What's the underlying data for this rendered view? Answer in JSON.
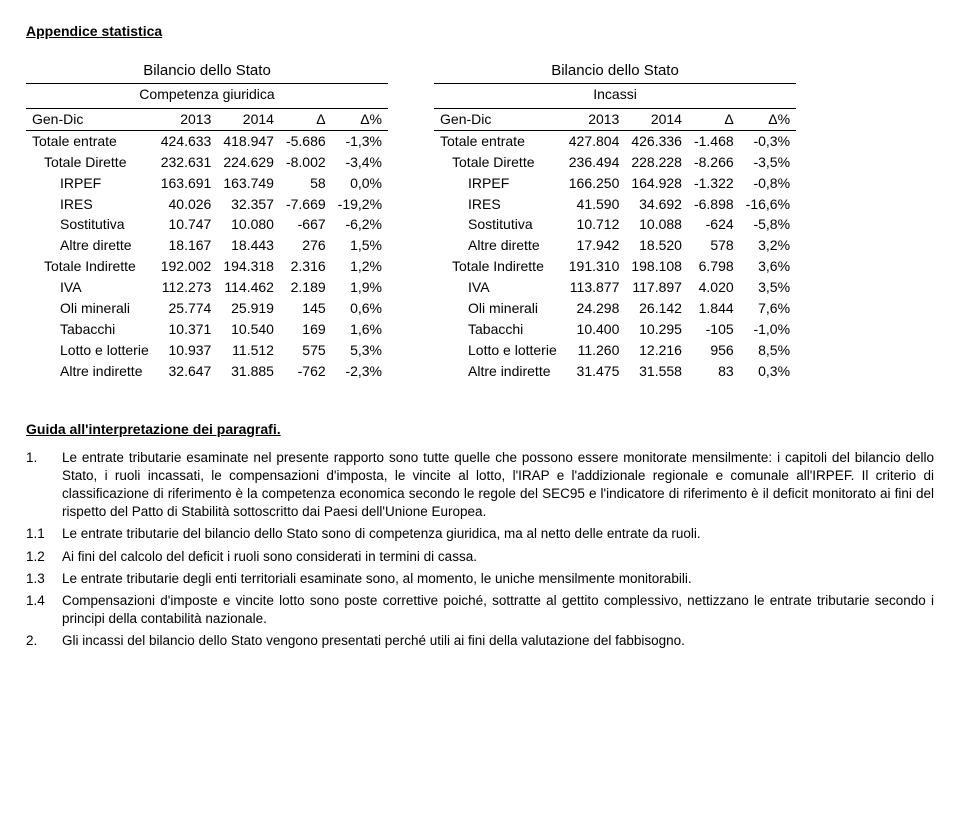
{
  "page_title": "Appendice statistica",
  "table_left": {
    "title": "Bilancio dello Stato",
    "subtitle": "Competenza giuridica",
    "period_label": "Gen-Dic",
    "col_years": [
      "2013",
      "2014"
    ],
    "col_delta": "Δ",
    "col_delta_pct": "Δ%",
    "rows": [
      {
        "label": "Totale entrate",
        "indent": 0,
        "v1": "424.633",
        "v2": "418.947",
        "d": "-5.686",
        "p": "-1,3%"
      },
      {
        "label": "Totale Dirette",
        "indent": 1,
        "v1": "232.631",
        "v2": "224.629",
        "d": "-8.002",
        "p": "-3,4%"
      },
      {
        "label": "IRPEF",
        "indent": 2,
        "v1": "163.691",
        "v2": "163.749",
        "d": "58",
        "p": "0,0%"
      },
      {
        "label": "IRES",
        "indent": 2,
        "v1": "40.026",
        "v2": "32.357",
        "d": "-7.669",
        "p": "-19,2%"
      },
      {
        "label": "Sostitutiva",
        "indent": 2,
        "v1": "10.747",
        "v2": "10.080",
        "d": "-667",
        "p": "-6,2%"
      },
      {
        "label": "Altre dirette",
        "indent": 2,
        "v1": "18.167",
        "v2": "18.443",
        "d": "276",
        "p": "1,5%"
      },
      {
        "label": "Totale Indirette",
        "indent": 1,
        "v1": "192.002",
        "v2": "194.318",
        "d": "2.316",
        "p": "1,2%"
      },
      {
        "label": "IVA",
        "indent": 2,
        "v1": "112.273",
        "v2": "114.462",
        "d": "2.189",
        "p": "1,9%"
      },
      {
        "label": "Oli minerali",
        "indent": 2,
        "v1": "25.774",
        "v2": "25.919",
        "d": "145",
        "p": "0,6%"
      },
      {
        "label": "Tabacchi",
        "indent": 2,
        "v1": "10.371",
        "v2": "10.540",
        "d": "169",
        "p": "1,6%"
      },
      {
        "label": "Lotto e lotterie",
        "indent": 2,
        "v1": "10.937",
        "v2": "11.512",
        "d": "575",
        "p": "5,3%"
      },
      {
        "label": "Altre indirette",
        "indent": 2,
        "v1": "32.647",
        "v2": "31.885",
        "d": "-762",
        "p": "-2,3%"
      }
    ]
  },
  "table_right": {
    "title": "Bilancio dello Stato",
    "subtitle": "Incassi",
    "period_label": "Gen-Dic",
    "col_years": [
      "2013",
      "2014"
    ],
    "col_delta": "Δ",
    "col_delta_pct": "Δ%",
    "rows": [
      {
        "label": "Totale entrate",
        "indent": 0,
        "v1": "427.804",
        "v2": "426.336",
        "d": "-1.468",
        "p": "-0,3%"
      },
      {
        "label": "Totale Dirette",
        "indent": 1,
        "v1": "236.494",
        "v2": "228.228",
        "d": "-8.266",
        "p": "-3,5%"
      },
      {
        "label": "IRPEF",
        "indent": 2,
        "v1": "166.250",
        "v2": "164.928",
        "d": "-1.322",
        "p": "-0,8%"
      },
      {
        "label": "IRES",
        "indent": 2,
        "v1": "41.590",
        "v2": "34.692",
        "d": "-6.898",
        "p": "-16,6%"
      },
      {
        "label": "Sostitutiva",
        "indent": 2,
        "v1": "10.712",
        "v2": "10.088",
        "d": "-624",
        "p": "-5,8%"
      },
      {
        "label": "Altre dirette",
        "indent": 2,
        "v1": "17.942",
        "v2": "18.520",
        "d": "578",
        "p": "3,2%"
      },
      {
        "label": "Totale Indirette",
        "indent": 1,
        "v1": "191.310",
        "v2": "198.108",
        "d": "6.798",
        "p": "3,6%"
      },
      {
        "label": "IVA",
        "indent": 2,
        "v1": "113.877",
        "v2": "117.897",
        "d": "4.020",
        "p": "3,5%"
      },
      {
        "label": "Oli minerali",
        "indent": 2,
        "v1": "24.298",
        "v2": "26.142",
        "d": "1.844",
        "p": "7,6%"
      },
      {
        "label": "Tabacchi",
        "indent": 2,
        "v1": "10.400",
        "v2": "10.295",
        "d": "-105",
        "p": "-1,0%"
      },
      {
        "label": "Lotto e lotterie",
        "indent": 2,
        "v1": "11.260",
        "v2": "12.216",
        "d": "956",
        "p": "8,5%"
      },
      {
        "label": "Altre indirette",
        "indent": 2,
        "v1": "31.475",
        "v2": "31.558",
        "d": "83",
        "p": "0,3%"
      }
    ]
  },
  "guide": {
    "title": "Guida all'interpretazione dei paragrafi.",
    "items": [
      {
        "n": "1.",
        "t": "Le entrate tributarie esaminate nel presente rapporto sono tutte   quelle che possono essere monitorate mensilmente: i capitoli del bilancio dello Stato, i ruoli incassati, le compensazioni d'imposta, le vincite al lotto, l'IRAP e l'addizionale regionale e comunale all'IRPEF. Il criterio di classificazione di riferimento è la competenza economica secondo le regole del SEC95 e l'indicatore di riferimento è il deficit monitorato ai fini del rispetto del Patto di Stabilità sottoscritto dai Paesi dell'Unione Europea."
      },
      {
        "n": "1.1",
        "t": "Le entrate tributarie del bilancio dello Stato sono di competenza giuridica, ma al netto delle entrate da ruoli."
      },
      {
        "n": "1.2",
        "t": "Ai fini del calcolo del deficit i ruoli sono considerati in termini di cassa."
      },
      {
        "n": "1.3",
        "t": "Le entrate tributarie degli enti territoriali esaminate sono, al momento, le uniche mensilmente monitorabili."
      },
      {
        "n": "1.4",
        "t": "Compensazioni d'imposte e vincite lotto sono poste correttive poiché, sottratte al gettito complessivo, nettizzano le entrate tributarie secondo i principi della contabilità nazionale."
      },
      {
        "n": "2.",
        "t": "Gli incassi del bilancio dello Stato vengono presentati perché utili ai fini della valutazione del fabbisogno."
      }
    ]
  }
}
